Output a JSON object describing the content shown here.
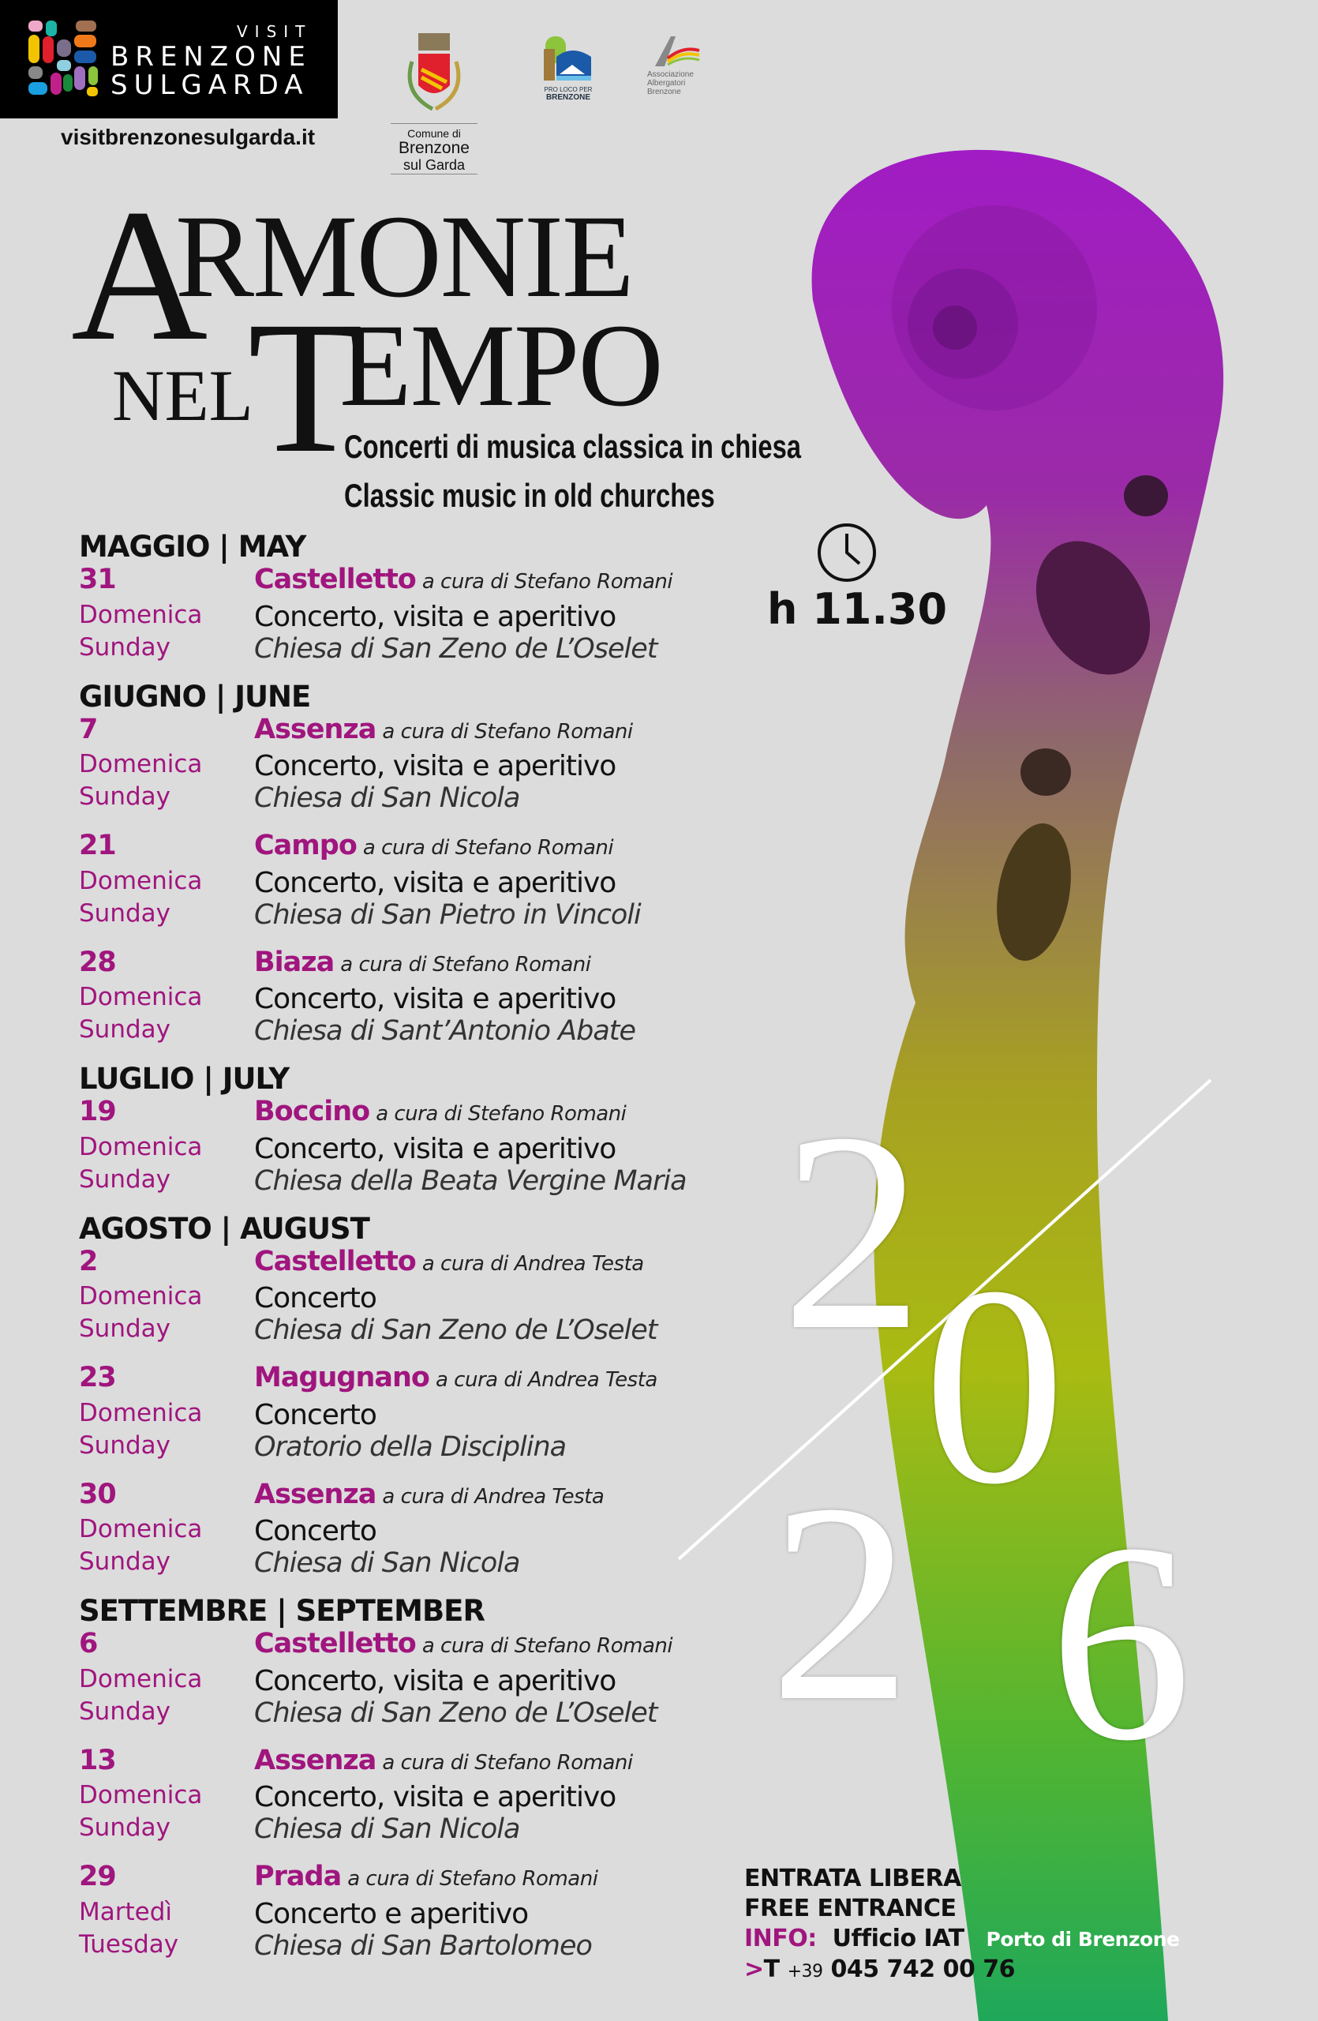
{
  "header": {
    "logo": {
      "visit": "VISIT",
      "brenzone": "BRENZONE",
      "sul_garda": "SULGARDA"
    },
    "url": "visitbrenzonesulgarda.it",
    "comune": {
      "line1": "Comune di",
      "line2": "Brenzone",
      "line3": "sul Garda"
    },
    "pro_loco": {
      "line1": "PRO LOCO PER",
      "line2": "BRENZONE"
    },
    "associazione": {
      "line1": "Associazione",
      "line2": "Albergatori",
      "line3": "Brenzone"
    }
  },
  "title": {
    "a": "A",
    "rmonie": "RMONIE",
    "nel": "NEL",
    "t": "T",
    "empo": "EMPO"
  },
  "subtitle_it": "Concerti di musica classica in chiesa",
  "subtitle_en": "Classic music in old churches",
  "time": {
    "icon": "clock-icon",
    "label": "h 11.30"
  },
  "year": {
    "d1": "2",
    "d2": "0",
    "d3": "2",
    "d4": "6"
  },
  "colors": {
    "accent": "#a0157e",
    "background": "#dcdcdc"
  },
  "months": [
    {
      "label": "MAGGIO | MAY",
      "events": [
        {
          "date": "31",
          "day_it": "Domenica",
          "day_en": "Sunday",
          "place": "Castelletto",
          "curator": "a cura di Stefano Romani",
          "desc": "Concerto, visita e aperitivo",
          "church": "Chiesa di San Zeno de L’Oselet"
        }
      ]
    },
    {
      "label": "GIUGNO | JUNE",
      "events": [
        {
          "date": "7",
          "day_it": "Domenica",
          "day_en": "Sunday",
          "place": "Assenza",
          "curator": "a cura di Stefano Romani",
          "desc": "Concerto, visita e aperitivo",
          "church": "Chiesa di San Nicola"
        },
        {
          "date": "21",
          "day_it": "Domenica",
          "day_en": "Sunday",
          "place": "Campo",
          "curator": "a cura di Stefano Romani",
          "desc": "Concerto, visita e aperitivo",
          "church": "Chiesa di San Pietro in Vincoli"
        },
        {
          "date": "28",
          "day_it": "Domenica",
          "day_en": "Sunday",
          "place": "Biaza",
          "curator": "a cura di Stefano Romani",
          "desc": "Concerto, visita e aperitivo",
          "church": "Chiesa di Sant’Antonio Abate"
        }
      ]
    },
    {
      "label": "LUGLIO | JULY",
      "events": [
        {
          "date": "19",
          "day_it": "Domenica",
          "day_en": "Sunday",
          "place": "Boccino",
          "curator": "a cura di Stefano Romani",
          "desc": "Concerto, visita e aperitivo",
          "church": "Chiesa della Beata Vergine Maria"
        }
      ]
    },
    {
      "label": "AGOSTO | AUGUST",
      "events": [
        {
          "date": "2",
          "day_it": "Domenica",
          "day_en": "Sunday",
          "place": "Castelletto",
          "curator": "a cura di Andrea Testa",
          "desc": "Concerto",
          "church": "Chiesa di San Zeno de L’Oselet"
        },
        {
          "date": "23",
          "day_it": "Domenica",
          "day_en": "Sunday",
          "place": "Magugnano",
          "curator": "a cura di Andrea Testa",
          "desc": "Concerto",
          "church": "Oratorio della Disciplina"
        },
        {
          "date": "30",
          "day_it": "Domenica",
          "day_en": "Sunday",
          "place": "Assenza",
          "curator": "a cura di Andrea Testa",
          "desc": "Concerto",
          "church": "Chiesa di San Nicola"
        }
      ]
    },
    {
      "label": "SETTEMBRE | SEPTEMBER",
      "events": [
        {
          "date": "6",
          "day_it": "Domenica",
          "day_en": "Sunday",
          "place": "Castelletto",
          "curator": "a cura di Stefano Romani",
          "desc": "Concerto, visita e aperitivo",
          "church": "Chiesa di San Zeno de L’Oselet"
        },
        {
          "date": "13",
          "day_it": "Domenica",
          "day_en": "Sunday",
          "place": "Assenza",
          "curator": "a cura di Stefano Romani",
          "desc": "Concerto, visita e aperitivo",
          "church": "Chiesa di San Nicola"
        },
        {
          "date": "29",
          "day_it": "Martedì",
          "day_en": "Tuesday",
          "place": "Prada",
          "curator": "a cura di Stefano Romani",
          "desc": "Concerto e aperitivo",
          "church": "Chiesa di San Bartolomeo"
        }
      ]
    }
  ],
  "footer": {
    "entrance_it": "ENTRATA LIBERA",
    "entrance_en": "FREE ENTRANCE",
    "info_label": "INFO:",
    "info_office": "Ufficio IAT",
    "info_location": "Porto di Brenzone",
    "phone_prefix": ">",
    "phone_t": "T",
    "phone_country": "+39",
    "phone_number": "045 742 00 76"
  }
}
